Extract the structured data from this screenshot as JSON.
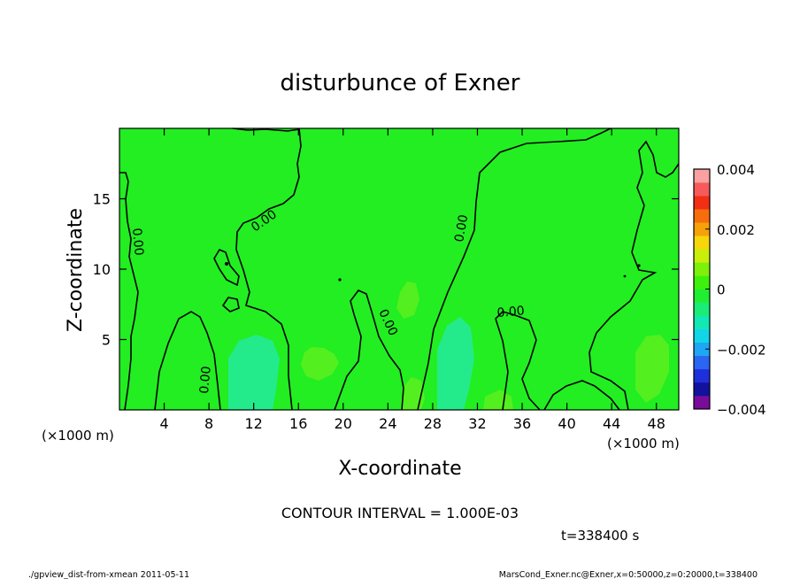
{
  "chart_data": {
    "type": "heatmap",
    "title": "disturbunce of Exner",
    "xlabel": "X-coordinate",
    "ylabel": "Z-coordinate",
    "x_unit": "(×1000 m)",
    "y_unit": "(×1000 m)",
    "xlim": [
      0,
      50
    ],
    "ylim": [
      0,
      20
    ],
    "x_ticks": [
      4,
      8,
      12,
      16,
      20,
      24,
      28,
      32,
      36,
      40,
      44,
      48
    ],
    "y_ticks": [
      5,
      10,
      15
    ],
    "colorbar": {
      "min": -0.004,
      "max": 0.004,
      "tick_values": [
        0.004,
        0.002,
        0,
        -0.002,
        -0.004
      ],
      "tick_labels": [
        "0.004",
        "0.002",
        "0",
        "−0.002",
        "−0.004"
      ],
      "colors": [
        "#7a0c9c",
        "#12129e",
        "#1f2fd9",
        "#2a66f2",
        "#1fa6f5",
        "#10d6e8",
        "#11e8b4",
        "#19ec77",
        "#20ee33",
        "#3df10d",
        "#7df00b",
        "#c8ee0a",
        "#f6d70c",
        "#f7a10a",
        "#f66e0c",
        "#f22f14",
        "#f75a5a",
        "#f9a0a0"
      ]
    },
    "contour_interval": "CONTOUR INTERVAL = 1.000E-03",
    "contour_label": "0.00",
    "time": "t=338400 s"
  },
  "footer": {
    "left": "./gpview_dist-from-xmean   2011-05-11",
    "right": "MarsCond_Exner.nc@Exner,x=0:50000,z=0:20000,t=338400"
  },
  "colors": {
    "field_dominant": "#22ee22",
    "field_positive": "#54ef1f",
    "field_negative": "#23eb8c",
    "contour": "#000000"
  }
}
